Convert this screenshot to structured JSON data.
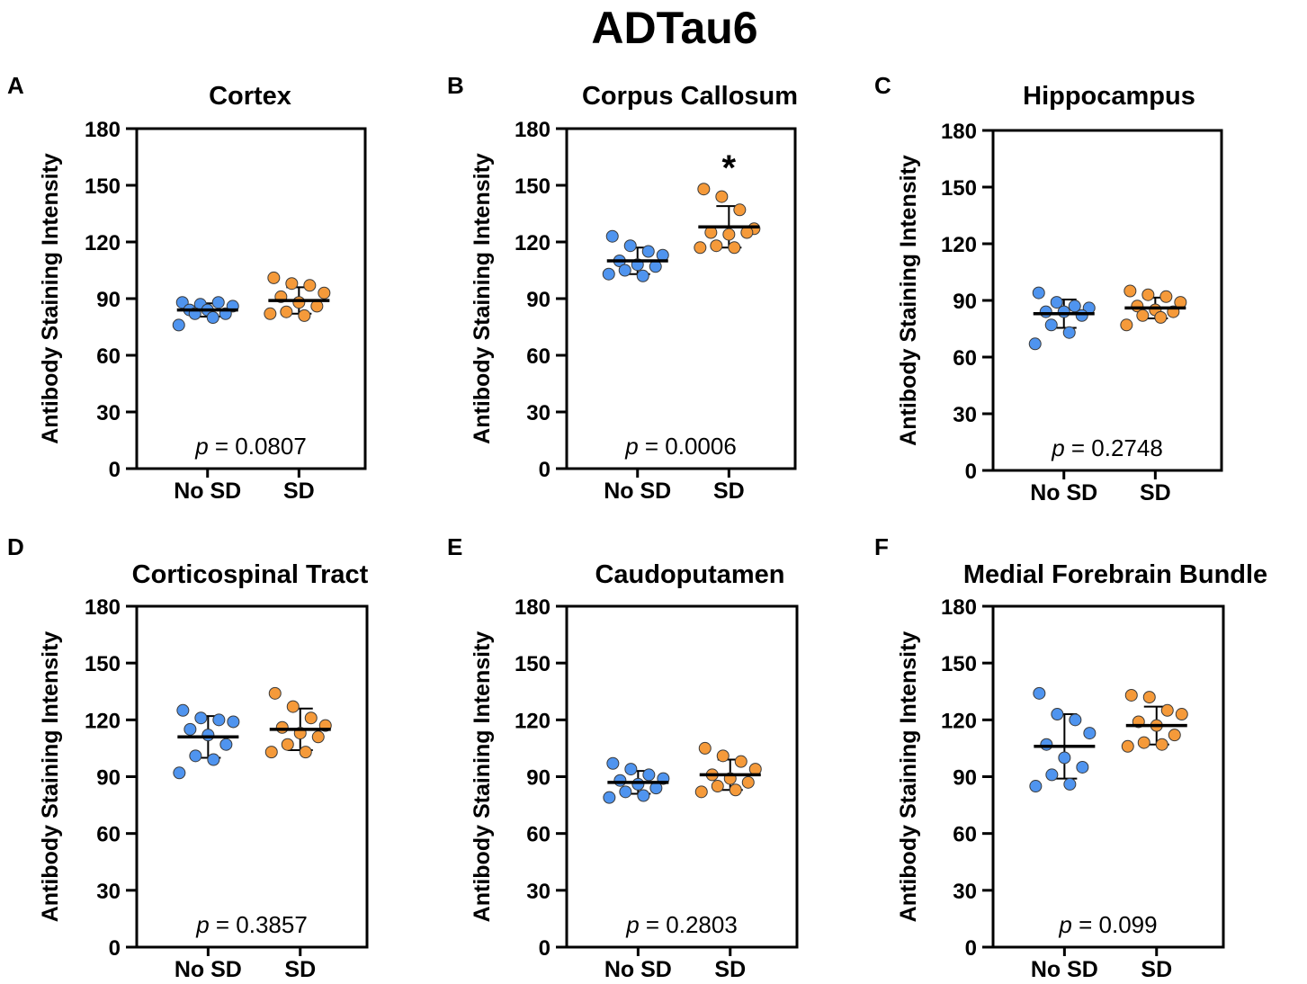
{
  "figure_title": "ADTau6",
  "colors": {
    "no_sd": "#4f94ef",
    "sd": "#f59a3a",
    "axis": "#000000",
    "point_stroke": "#3a3a3a"
  },
  "chart_data": [
    {
      "type": "scatter",
      "letter": "A",
      "title": "Cortex",
      "ylabel": "Antibody Staining Intensity",
      "categories": [
        "No SD",
        "SD"
      ],
      "ylim": [
        0,
        180
      ],
      "yticks": [
        0,
        30,
        60,
        90,
        120,
        150,
        180
      ],
      "p_prefix": "p",
      "p_value": "= 0.0807",
      "significance": "",
      "series": [
        {
          "name": "No SD",
          "mean": 84,
          "sd": 3.5,
          "points": [
            88,
            87,
            88,
            86,
            84,
            84,
            82,
            82,
            80,
            76
          ]
        },
        {
          "name": "SD",
          "mean": 89,
          "sd": 7,
          "points": [
            101,
            98,
            97,
            93,
            91,
            88,
            86,
            83,
            81,
            82
          ]
        }
      ]
    },
    {
      "type": "scatter",
      "letter": "B",
      "title": "Corpus Callosum",
      "ylabel": "Antibody Staining Intensity",
      "categories": [
        "No SD",
        "SD"
      ],
      "ylim": [
        0,
        180
      ],
      "yticks": [
        0,
        30,
        60,
        90,
        120,
        150,
        180
      ],
      "p_prefix": "p",
      "p_value": "= 0.0006",
      "significance": "*",
      "series": [
        {
          "name": "No SD",
          "mean": 110,
          "sd": 7,
          "points": [
            123,
            118,
            115,
            113,
            110,
            108,
            107,
            105,
            102,
            103
          ]
        },
        {
          "name": "SD",
          "mean": 128,
          "sd": 11,
          "points": [
            148,
            144,
            137,
            127,
            125,
            124,
            125,
            118,
            117,
            117
          ]
        }
      ]
    },
    {
      "type": "scatter",
      "letter": "C",
      "title": "Hippocampus",
      "ylabel": "Antibody Staining Intensity",
      "categories": [
        "No SD",
        "SD"
      ],
      "ylim": [
        0,
        180
      ],
      "yticks": [
        0,
        30,
        60,
        90,
        120,
        150,
        180
      ],
      "p_prefix": "p",
      "p_value": "= 0.2748",
      "significance": "",
      "series": [
        {
          "name": "No SD",
          "mean": 83,
          "sd": 7.5,
          "points": [
            94,
            89,
            87,
            86,
            84,
            84,
            82,
            77,
            73,
            67
          ]
        },
        {
          "name": "SD",
          "mean": 86,
          "sd": 5.5,
          "points": [
            95,
            93,
            92,
            89,
            87,
            85,
            84,
            82,
            81,
            77
          ]
        }
      ]
    },
    {
      "type": "scatter",
      "letter": "D",
      "title": "Corticospinal Tract",
      "ylabel": "Antibody Staining Intensity",
      "categories": [
        "No SD",
        "SD"
      ],
      "ylim": [
        0,
        180
      ],
      "yticks": [
        0,
        30,
        60,
        90,
        120,
        150,
        180
      ],
      "p_prefix": "p",
      "p_value": "= 0.3857",
      "significance": "",
      "series": [
        {
          "name": "No SD",
          "mean": 111,
          "sd": 11,
          "points": [
            125,
            121,
            120,
            119,
            115,
            112,
            107,
            101,
            99,
            92
          ]
        },
        {
          "name": "SD",
          "mean": 115,
          "sd": 11,
          "points": [
            134,
            127,
            121,
            117,
            116,
            113,
            111,
            107,
            103,
            103
          ]
        }
      ]
    },
    {
      "type": "scatter",
      "letter": "E",
      "title": "Caudoputamen",
      "ylabel": "Antibody Staining Intensity",
      "categories": [
        "No SD",
        "SD"
      ],
      "ylim": [
        0,
        180
      ],
      "yticks": [
        0,
        30,
        60,
        90,
        120,
        150,
        180
      ],
      "p_prefix": "p",
      "p_value": "= 0.2803",
      "significance": "",
      "series": [
        {
          "name": "No SD",
          "mean": 87,
          "sd": 6,
          "points": [
            97,
            94,
            91,
            89,
            88,
            86,
            84,
            82,
            80,
            79
          ]
        },
        {
          "name": "SD",
          "mean": 91,
          "sd": 8,
          "points": [
            105,
            101,
            98,
            94,
            91,
            89,
            87,
            85,
            83,
            82
          ]
        }
      ]
    },
    {
      "type": "scatter",
      "letter": "F",
      "title": "Medial Forebrain Bundle",
      "ylabel": "Antibody Staining Intensity",
      "categories": [
        "No SD",
        "SD"
      ],
      "ylim": [
        0,
        180
      ],
      "yticks": [
        0,
        30,
        60,
        90,
        120,
        150,
        180
      ],
      "p_prefix": "p",
      "p_value": "= 0.099",
      "significance": "",
      "series": [
        {
          "name": "No SD",
          "mean": 106,
          "sd": 17,
          "points": [
            134,
            123,
            120,
            113,
            107,
            100,
            95,
            91,
            86,
            85
          ]
        },
        {
          "name": "SD",
          "mean": 117,
          "sd": 10,
          "points": [
            133,
            132,
            125,
            123,
            119,
            117,
            112,
            108,
            107,
            106
          ]
        }
      ]
    }
  ]
}
